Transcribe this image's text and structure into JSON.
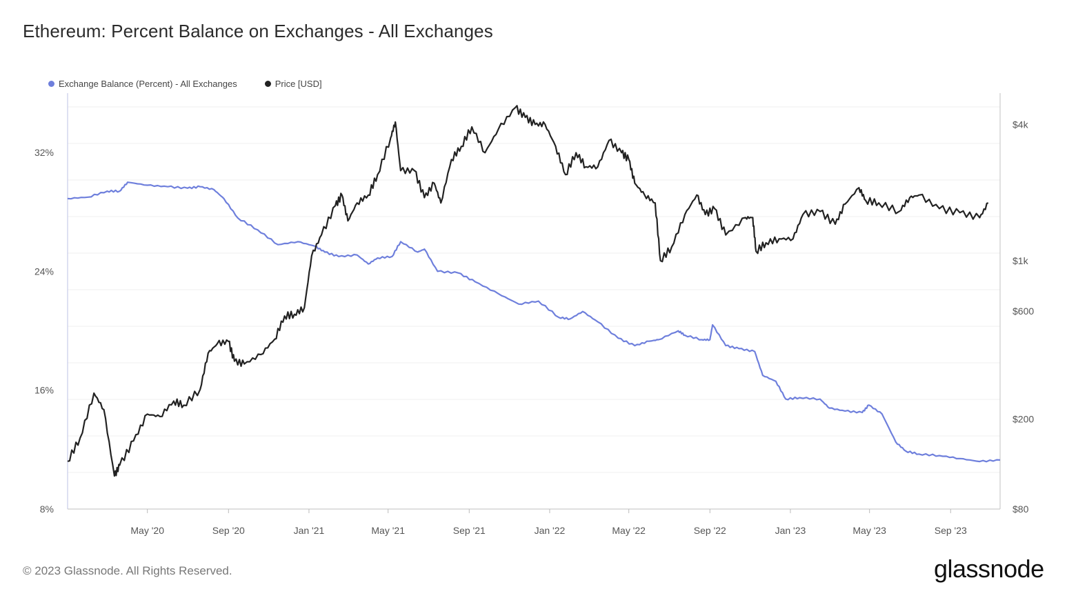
{
  "title": "Ethereum: Percent Balance on Exchanges - All Exchanges",
  "footer": "© 2023 Glassnode. All Rights Reserved.",
  "brand": "glassnode",
  "chart_data": {
    "type": "line",
    "title": "Ethereum: Percent Balance on Exchanges - All Exchanges",
    "grid": true,
    "legend_placement": "top-left",
    "x_ticks": [
      "May '20",
      "Sep '20",
      "Jan '21",
      "May '21",
      "Sep '21",
      "Jan '22",
      "May '22",
      "Sep '22",
      "Jan '23",
      "May '23",
      "Sep '23"
    ],
    "xlim": [
      "2020-01-01",
      "2023-11-15"
    ],
    "y_left": {
      "ticks": [
        "8%",
        "16%",
        "24%",
        "32%"
      ],
      "range": [
        8,
        36
      ],
      "unit": "%"
    },
    "y_right": {
      "ticks": [
        "$80",
        "$200",
        "$600",
        "$1k",
        "$4k"
      ],
      "tick_values": [
        80,
        200,
        600,
        1000,
        4000
      ],
      "range": [
        80,
        5500
      ],
      "scale": "log"
    },
    "series": [
      {
        "name": "Exchange Balance (Percent) - All Exchanges",
        "axis": "left",
        "color": "#6e7fdc",
        "points": [
          [
            "2020-01-01",
            28.9
          ],
          [
            "2020-02-01",
            29.0
          ],
          [
            "2020-03-01",
            29.4
          ],
          [
            "2020-03-20",
            29.4
          ],
          [
            "2020-04-01",
            30.0
          ],
          [
            "2020-05-01",
            29.8
          ],
          [
            "2020-06-01",
            29.7
          ],
          [
            "2020-07-01",
            29.6
          ],
          [
            "2020-07-20",
            29.7
          ],
          [
            "2020-08-10",
            29.5
          ],
          [
            "2020-08-25",
            28.9
          ],
          [
            "2020-09-15",
            27.6
          ],
          [
            "2020-10-15",
            26.8
          ],
          [
            "2020-11-15",
            25.8
          ],
          [
            "2020-12-15",
            26.0
          ],
          [
            "2021-01-10",
            25.7
          ],
          [
            "2021-01-25",
            25.3
          ],
          [
            "2021-02-15",
            25.0
          ],
          [
            "2021-03-15",
            25.1
          ],
          [
            "2021-04-01",
            24.5
          ],
          [
            "2021-04-15",
            24.9
          ],
          [
            "2021-05-07",
            25.0
          ],
          [
            "2021-05-20",
            26.0
          ],
          [
            "2021-06-15",
            25.3
          ],
          [
            "2021-06-25",
            25.5
          ],
          [
            "2021-07-15",
            24.0
          ],
          [
            "2021-08-15",
            23.9
          ],
          [
            "2021-09-10",
            23.3
          ],
          [
            "2021-10-15",
            22.5
          ],
          [
            "2021-11-15",
            21.8
          ],
          [
            "2021-12-15",
            22.0
          ],
          [
            "2022-01-15",
            20.9
          ],
          [
            "2022-02-01",
            20.8
          ],
          [
            "2022-02-20",
            21.3
          ],
          [
            "2022-03-15",
            20.6
          ],
          [
            "2022-04-15",
            19.5
          ],
          [
            "2022-05-10",
            19.0
          ],
          [
            "2022-06-01",
            19.3
          ],
          [
            "2022-06-15",
            19.4
          ],
          [
            "2022-07-15",
            20.0
          ],
          [
            "2022-07-25",
            19.7
          ],
          [
            "2022-08-20",
            19.4
          ],
          [
            "2022-09-01",
            19.4
          ],
          [
            "2022-09-05",
            20.4
          ],
          [
            "2022-09-25",
            19.0
          ],
          [
            "2022-10-15",
            18.8
          ],
          [
            "2022-11-08",
            18.6
          ],
          [
            "2022-11-20",
            17.0
          ],
          [
            "2022-12-10",
            16.6
          ],
          [
            "2022-12-25",
            15.4
          ],
          [
            "2023-01-15",
            15.5
          ],
          [
            "2023-02-15",
            15.4
          ],
          [
            "2023-03-01",
            14.8
          ],
          [
            "2023-03-25",
            14.6
          ],
          [
            "2023-04-20",
            14.5
          ],
          [
            "2023-04-30",
            15.0
          ],
          [
            "2023-05-20",
            14.4
          ],
          [
            "2023-06-10",
            12.5
          ],
          [
            "2023-06-25",
            11.9
          ],
          [
            "2023-07-15",
            11.7
          ],
          [
            "2023-08-15",
            11.6
          ],
          [
            "2023-09-15",
            11.4
          ],
          [
            "2023-10-15",
            11.2
          ],
          [
            "2023-11-15",
            11.3
          ]
        ]
      },
      {
        "name": "Price [USD]",
        "axis": "right",
        "color": "#222222",
        "points": [
          [
            "2020-01-01",
            130
          ],
          [
            "2020-01-20",
            165
          ],
          [
            "2020-02-10",
            260
          ],
          [
            "2020-02-25",
            220
          ],
          [
            "2020-03-12",
            112
          ],
          [
            "2020-03-20",
            125
          ],
          [
            "2020-04-10",
            160
          ],
          [
            "2020-05-01",
            210
          ],
          [
            "2020-05-20",
            205
          ],
          [
            "2020-06-10",
            240
          ],
          [
            "2020-06-25",
            230
          ],
          [
            "2020-07-20",
            270
          ],
          [
            "2020-08-01",
            390
          ],
          [
            "2020-08-15",
            430
          ],
          [
            "2020-09-01",
            440
          ],
          [
            "2020-09-10",
            360
          ],
          [
            "2020-09-25",
            350
          ],
          [
            "2020-10-20",
            385
          ],
          [
            "2020-11-10",
            450
          ],
          [
            "2020-11-25",
            570
          ],
          [
            "2020-12-10",
            580
          ],
          [
            "2020-12-25",
            620
          ],
          [
            "2021-01-05",
            1050
          ],
          [
            "2021-01-20",
            1300
          ],
          [
            "2021-02-10",
            1750
          ],
          [
            "2021-02-20",
            1950
          ],
          [
            "2021-03-01",
            1500
          ],
          [
            "2021-03-15",
            1800
          ],
          [
            "2021-04-01",
            1950
          ],
          [
            "2021-04-15",
            2400
          ],
          [
            "2021-05-05",
            3500
          ],
          [
            "2021-05-12",
            4100
          ],
          [
            "2021-05-20",
            2500
          ],
          [
            "2021-06-10",
            2500
          ],
          [
            "2021-06-25",
            1900
          ],
          [
            "2021-07-10",
            2200
          ],
          [
            "2021-07-20",
            1800
          ],
          [
            "2021-08-05",
            2800
          ],
          [
            "2021-08-20",
            3200
          ],
          [
            "2021-09-05",
            3900
          ],
          [
            "2021-09-25",
            3000
          ],
          [
            "2021-10-15",
            3800
          ],
          [
            "2021-11-10",
            4750
          ],
          [
            "2021-11-25",
            4300
          ],
          [
            "2021-12-10",
            4000
          ],
          [
            "2021-12-25",
            4000
          ],
          [
            "2022-01-10",
            3200
          ],
          [
            "2022-01-25",
            2400
          ],
          [
            "2022-02-10",
            3000
          ],
          [
            "2022-02-25",
            2600
          ],
          [
            "2022-03-15",
            2600
          ],
          [
            "2022-04-01",
            3400
          ],
          [
            "2022-04-20",
            3000
          ],
          [
            "2022-05-01",
            2800
          ],
          [
            "2022-05-10",
            2200
          ],
          [
            "2022-05-25",
            1950
          ],
          [
            "2022-06-10",
            1800
          ],
          [
            "2022-06-18",
            1000
          ],
          [
            "2022-07-05",
            1150
          ],
          [
            "2022-07-25",
            1600
          ],
          [
            "2022-08-12",
            1950
          ],
          [
            "2022-08-25",
            1600
          ],
          [
            "2022-09-08",
            1700
          ],
          [
            "2022-09-25",
            1300
          ],
          [
            "2022-10-25",
            1550
          ],
          [
            "2022-11-05",
            1550
          ],
          [
            "2022-11-10",
            1100
          ],
          [
            "2022-11-25",
            1200
          ],
          [
            "2022-12-15",
            1250
          ],
          [
            "2023-01-05",
            1250
          ],
          [
            "2023-01-20",
            1600
          ],
          [
            "2023-02-15",
            1650
          ],
          [
            "2023-03-10",
            1450
          ],
          [
            "2023-03-25",
            1780
          ],
          [
            "2023-04-15",
            2100
          ],
          [
            "2023-04-25",
            1850
          ],
          [
            "2023-05-15",
            1800
          ],
          [
            "2023-06-15",
            1650
          ],
          [
            "2023-07-01",
            1900
          ],
          [
            "2023-07-15",
            1950
          ],
          [
            "2023-08-15",
            1700
          ],
          [
            "2023-09-15",
            1630
          ],
          [
            "2023-10-15",
            1550
          ],
          [
            "2023-10-28",
            1800
          ]
        ]
      }
    ]
  }
}
